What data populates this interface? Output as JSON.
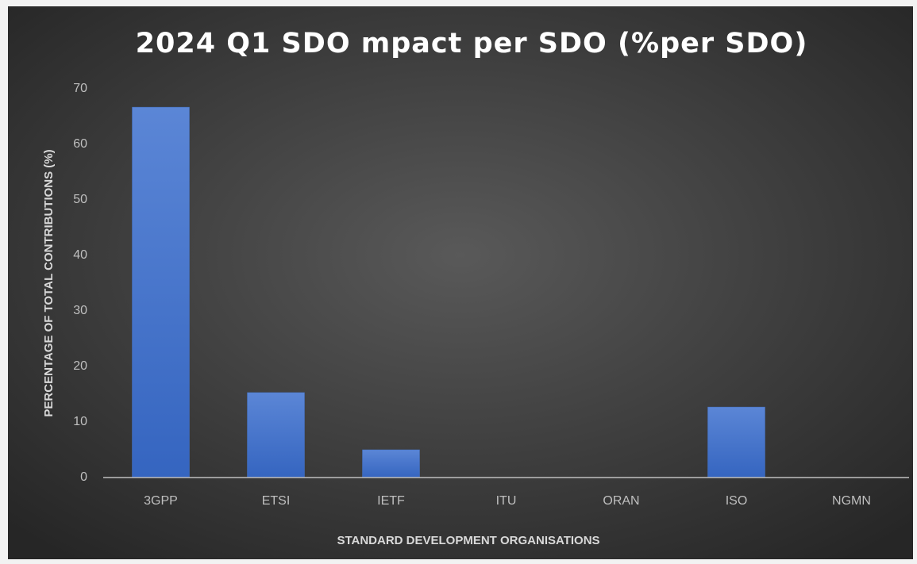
{
  "chart_data": {
    "type": "bar",
    "title": "2024 Q1 SDO mpact per SDO (%per SDO)",
    "x_label": "STANDARD DEVELOPMENT ORGANISATIONS",
    "y_label": "PERCENTAGE OF TOTAL CONTRIBUTIONS (%)",
    "categories": [
      "3GPP",
      "ETSI",
      "IETF",
      "ITU",
      "ORAN",
      "ISO",
      "NGMN"
    ],
    "values": [
      66.7,
      15.3,
      5.0,
      0,
      0,
      12.7,
      0
    ],
    "color": "#4472c4",
    "ylim": [
      0,
      70
    ],
    "yticks": [
      0,
      10,
      20,
      30,
      40,
      50,
      60,
      70
    ],
    "grid": false
  }
}
